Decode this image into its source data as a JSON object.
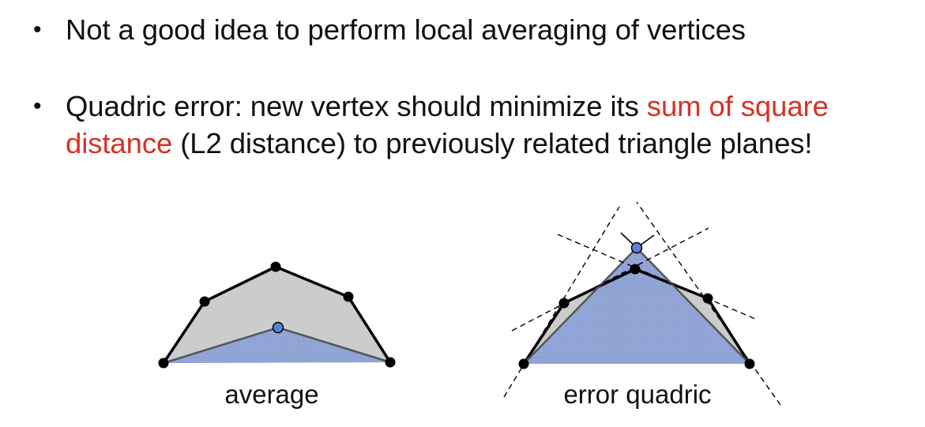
{
  "bullets": [
    {
      "text": "Not a good idea to perform local averaging of vertices"
    },
    {
      "prefix": "Quadric error: new vertex should minimize its ",
      "highlight": "sum of square distance",
      "suffix": " (L2 distance) to previously related triangle planes!"
    }
  ],
  "figures": {
    "left_caption": "average",
    "right_caption": "error quadric"
  },
  "colors": {
    "highlight": "#d93025",
    "polygon_fill": "#cccccc",
    "blue_region": "#8fa4d6",
    "new_vertex": "#5b7fd6"
  }
}
